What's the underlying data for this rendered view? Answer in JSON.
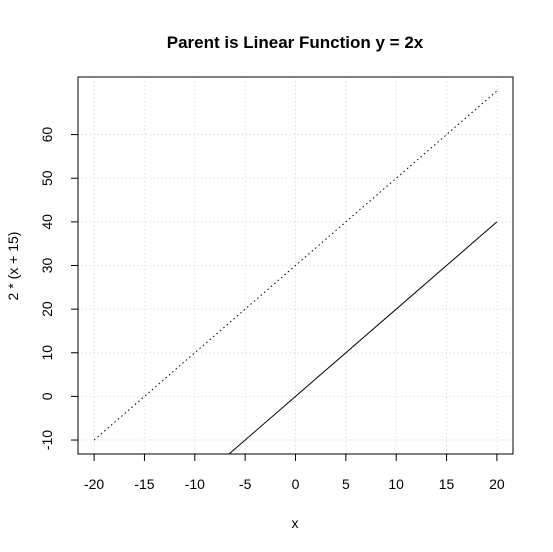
{
  "chart_data": {
    "type": "line",
    "title": "Parent is Linear Function y = 2x",
    "xlabel": "x",
    "ylabel": "2 * (x + 15)",
    "xlim": [
      -21.6,
      21.6
    ],
    "ylim": [
      -13.2,
      73.2
    ],
    "x_ticks": [
      -20,
      -15,
      -10,
      -5,
      0,
      5,
      10,
      15,
      20
    ],
    "y_ticks": [
      -10,
      0,
      10,
      20,
      30,
      40,
      50,
      60
    ],
    "x_tick_labels": [
      "-20",
      "-15",
      "-10",
      "-5",
      "0",
      "5",
      "10",
      "15",
      "20"
    ],
    "y_tick_labels": [
      "-10",
      "0",
      "10",
      "20",
      "30",
      "40",
      "50",
      "60"
    ],
    "grid": true,
    "series": [
      {
        "name": "2 * (x + 15)",
        "style": "dotted",
        "color": "#000000",
        "x": [
          -20,
          20
        ],
        "y": [
          -10,
          70
        ]
      },
      {
        "name": "2x",
        "style": "solid",
        "color": "#000000",
        "x": [
          -20,
          20
        ],
        "y": [
          -40,
          40
        ]
      }
    ]
  }
}
